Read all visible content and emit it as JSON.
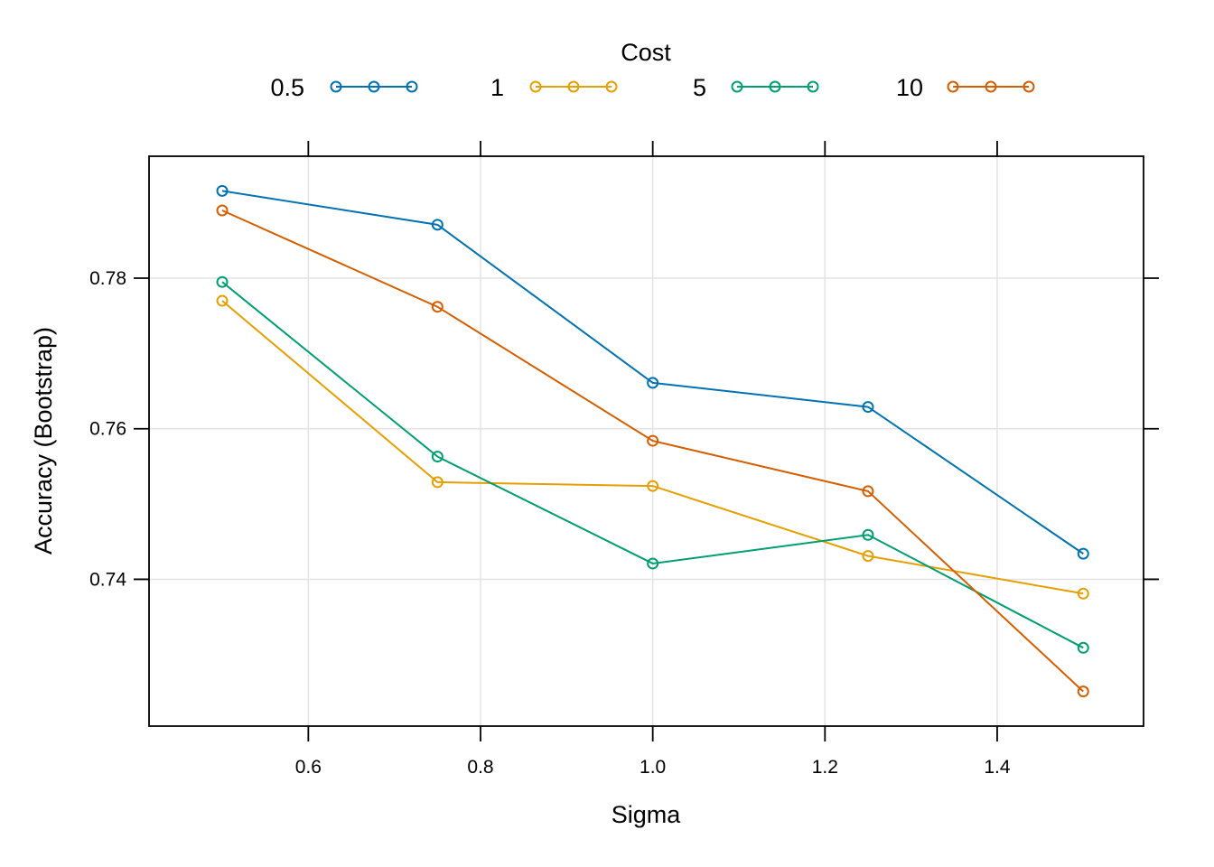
{
  "chart_data": {
    "type": "line",
    "xlabel": "Sigma",
    "ylabel": "Accuracy (Bootstrap)",
    "legend_title": "Cost",
    "legend_position": "top",
    "grid": true,
    "xlim": [
      0.415,
      1.57
    ],
    "ylim": [
      0.7205,
      0.7962
    ],
    "x_ticks": [
      0.6,
      0.8,
      1.0,
      1.2,
      1.4
    ],
    "x_tick_labels": [
      "0.6",
      "0.8",
      "1.0",
      "1.2",
      "1.4"
    ],
    "y_ticks": [
      0.74,
      0.76,
      0.78
    ],
    "y_tick_labels": [
      "0.74",
      "0.76",
      "0.78"
    ],
    "x": [
      0.5,
      0.75,
      1.0,
      1.25,
      1.5
    ],
    "series": [
      {
        "name": "0.5",
        "color": "#0072b2",
        "values": [
          0.7916,
          0.7871,
          0.7661,
          0.7629,
          0.7434
        ]
      },
      {
        "name": "1",
        "color": "#e69f00",
        "values": [
          0.777,
          0.7529,
          0.7524,
          0.7431,
          0.7381
        ]
      },
      {
        "name": "5",
        "color": "#009e73",
        "values": [
          0.7795,
          0.7563,
          0.7421,
          0.7459,
          0.7309
        ]
      },
      {
        "name": "10",
        "color": "#d55e00",
        "values": [
          0.789,
          0.7762,
          0.7584,
          0.7517,
          0.7251
        ]
      }
    ]
  }
}
